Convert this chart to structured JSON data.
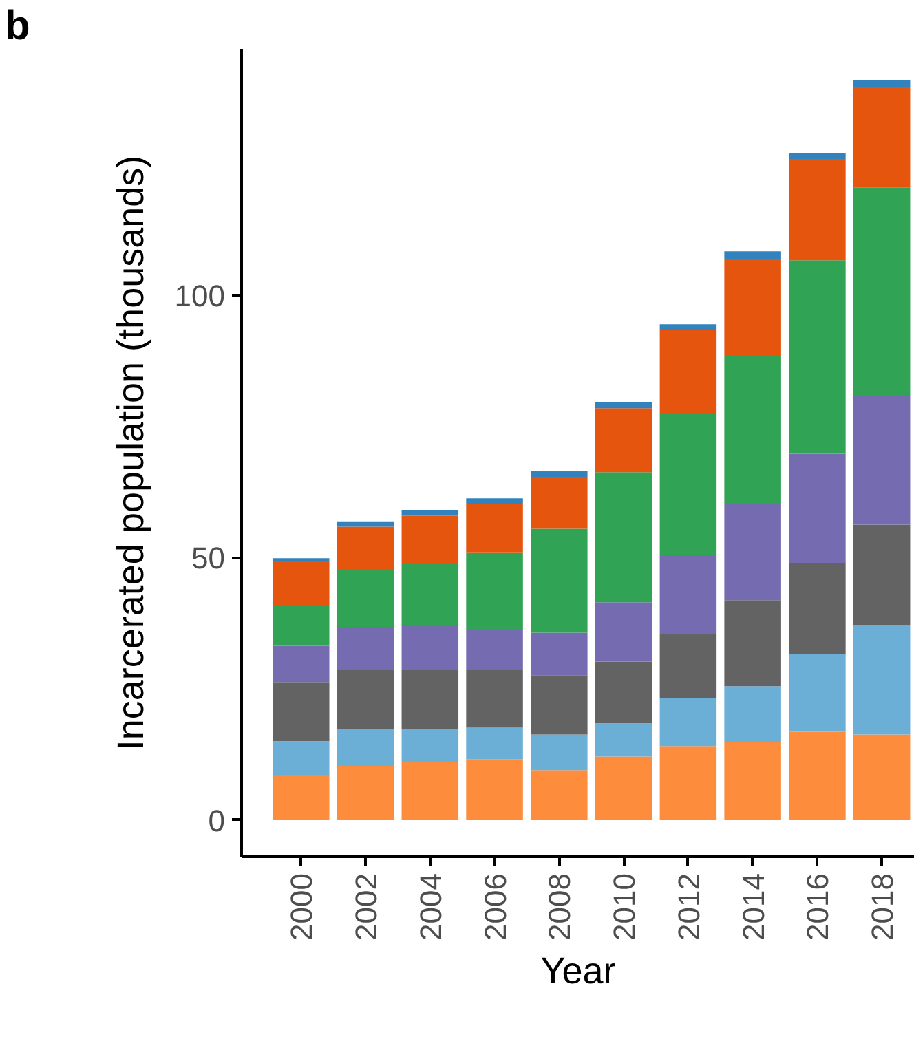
{
  "chart_data": {
    "type": "bar",
    "stacked": true,
    "title": "b",
    "xlabel": "Year",
    "ylabel": "Incarcerated population (thousands)",
    "categories": [
      "2000",
      "2002",
      "2004",
      "2006",
      "2008",
      "2010",
      "2012",
      "2014",
      "2016",
      "2018"
    ],
    "series": [
      {
        "color": "#fd8d3c",
        "values": [
          8.6,
          10.3,
          11.1,
          11.6,
          9.5,
          12.1,
          14.1,
          14.9,
          16.8,
          16.3
        ]
      },
      {
        "color": "#6baed6",
        "values": [
          6.4,
          7.0,
          6.2,
          6.0,
          6.8,
          6.3,
          9.2,
          10.6,
          14.8,
          20.9
        ]
      },
      {
        "color": "#636363",
        "values": [
          11.3,
          11.3,
          11.3,
          11.0,
          11.3,
          11.8,
          12.2,
          16.4,
          17.4,
          19.1
        ]
      },
      {
        "color": "#756bb1",
        "values": [
          6.9,
          8.2,
          8.6,
          7.6,
          8.1,
          11.3,
          15.0,
          18.3,
          20.8,
          24.5
        ]
      },
      {
        "color": "#31a354",
        "values": [
          7.8,
          10.8,
          11.8,
          14.8,
          19.8,
          24.8,
          27.1,
          28.2,
          36.9,
          39.8
        ]
      },
      {
        "color": "#e6550d",
        "values": [
          8.3,
          8.3,
          9.0,
          9.2,
          9.9,
          12.2,
          15.8,
          18.5,
          19.3,
          19.2
        ]
      },
      {
        "color": "#3182bd",
        "values": [
          0.6,
          1.0,
          1.1,
          1.1,
          1.1,
          1.2,
          1.1,
          1.5,
          1.2,
          1.3
        ]
      }
    ],
    "ylim": [
      -7,
      147
    ],
    "yticks": [
      0,
      50,
      100
    ],
    "grid": false
  }
}
